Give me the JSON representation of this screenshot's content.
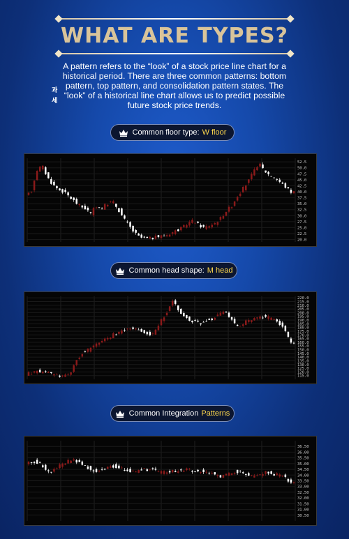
{
  "header": {
    "title": "WHAT ARE TYPES?",
    "intro": "A pattern refers to the “look” of a stock price line chart for a historical period. There are three common patterns: bottom pattern, top pattern, and consolidation pattern states. The “look” of a historical line chart allows us to predict possible future stock price trends.",
    "side_chars": [
      "과",
      "세"
    ]
  },
  "sections": [
    {
      "label": "Common floor type:",
      "highlight": "W floor"
    },
    {
      "label": "Common head shape:",
      "highlight": "M head"
    },
    {
      "label": "Common Integration",
      "highlight": "Patterns"
    }
  ],
  "colors": {
    "up": "#8b1a1a",
    "down": "#ffffff",
    "highlight": "#ffd84d",
    "title": "#d9c49a"
  },
  "chart_data": [
    {
      "type": "candlestick",
      "title": "",
      "ylim": [
        19,
        54
      ],
      "yticks": [
        "52.5",
        "50.0",
        "47.5",
        "45.0",
        "42.5",
        "40.0",
        "37.5",
        "35.0",
        "32.5",
        "30.0",
        "27.5",
        "25.0",
        "22.5",
        "20.0"
      ],
      "anchors": [
        38,
        40,
        49,
        51,
        46,
        43,
        41,
        40,
        38,
        36,
        34,
        33,
        31,
        34,
        33,
        35,
        36,
        33,
        29,
        26,
        23,
        21,
        20.5,
        20.5,
        21,
        21.5,
        22,
        23,
        24,
        25,
        27,
        28,
        26,
        25,
        26,
        27,
        29,
        32,
        34,
        38,
        41,
        44,
        48,
        52,
        49,
        47,
        46,
        44,
        42,
        40
      ]
    },
    {
      "type": "candlestick",
      "title": "",
      "ylim": [
        110,
        222
      ],
      "yticks": [
        "220.0",
        "215.0",
        "210.0",
        "205.0",
        "200.0",
        "195.0",
        "190.0",
        "185.0",
        "180.0",
        "175.0",
        "170.0",
        "165.0",
        "160.0",
        "155.0",
        "150.0",
        "145.0",
        "140.0",
        "135.0",
        "130.0",
        "125.0",
        "120.0",
        "115.0"
      ],
      "anchors": [
        117,
        119,
        121,
        120,
        118,
        116,
        115,
        116,
        120,
        135,
        145,
        150,
        155,
        160,
        165,
        168,
        172,
        175,
        178,
        180,
        176,
        173,
        170,
        175,
        190,
        200,
        215,
        205,
        195,
        190,
        188,
        186,
        190,
        192,
        198,
        202,
        195,
        185,
        182,
        188,
        190,
        192,
        195,
        193,
        190,
        185,
        175,
        160
      ]
    },
    {
      "type": "candlestick",
      "title": "",
      "ylim": [
        30,
        37
      ],
      "yticks": [
        "36.50",
        "36.00",
        "35.50",
        "35.00",
        "34.50",
        "34.00",
        "33.50",
        "33.00",
        "32.50",
        "32.00",
        "31.50",
        "31.00",
        "30.50"
      ],
      "anchors": [
        35.0,
        35.2,
        35.1,
        34.6,
        34.2,
        34.7,
        35.0,
        35.3,
        35.2,
        35.0,
        34.6,
        34.3,
        34.5,
        34.7,
        34.8,
        34.6,
        34.4,
        34.3,
        34.4,
        34.5,
        34.4,
        34.3,
        34.2,
        34.3,
        34.4,
        34.5,
        34.4,
        34.3,
        34.4,
        34.2,
        34.0,
        33.9,
        34.1,
        34.3,
        34.2,
        34.0,
        33.8,
        34.0,
        34.2,
        34.1,
        34.0,
        33.8,
        33.3
      ]
    }
  ]
}
